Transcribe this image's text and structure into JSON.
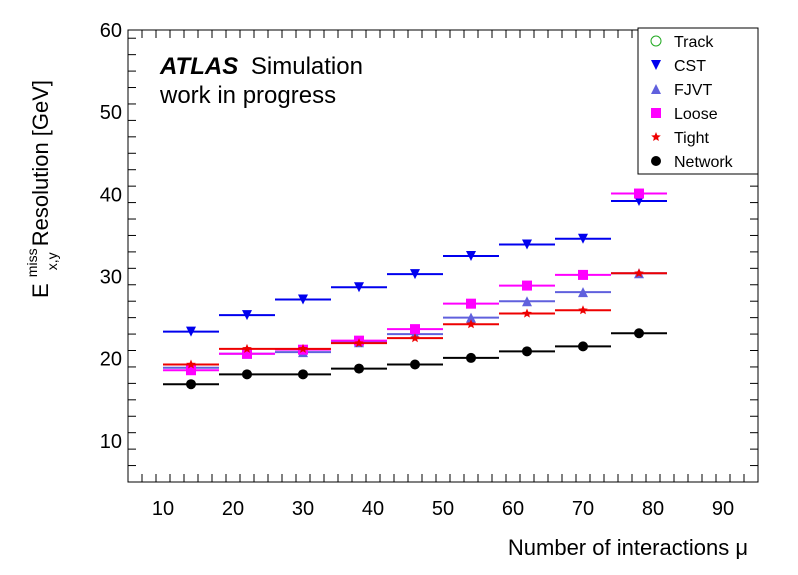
{
  "chart_data": {
    "type": "scatter",
    "xlabel": "Number of interactions μ",
    "ylabel": {
      "base": "E",
      "sup": "miss",
      "sub": "x,y",
      "rest": " Resolution [GeV]"
    },
    "xlim": [
      5,
      95
    ],
    "ylim": [
      5,
      60
    ],
    "xticks": [
      10,
      20,
      30,
      40,
      50,
      60,
      70,
      80,
      90
    ],
    "yticks": [
      10,
      20,
      30,
      40,
      50,
      60
    ],
    "label_atlas": "ATLAS",
    "label_simulation": "Simulation",
    "label_wip": "work in progress",
    "legend_position": "top-right",
    "bins": [
      [
        10,
        18
      ],
      [
        18,
        26
      ],
      [
        26,
        34
      ],
      [
        34,
        42
      ],
      [
        42,
        50
      ],
      [
        50,
        58
      ],
      [
        58,
        66
      ],
      [
        66,
        74
      ],
      [
        74,
        82
      ]
    ],
    "x": [
      14,
      22,
      30,
      38,
      46,
      54,
      62,
      70,
      78
    ],
    "series": [
      {
        "name": "Track",
        "color": "#22aa22",
        "marker": "open-circle",
        "values": []
      },
      {
        "name": "CST",
        "color": "#0000ee",
        "marker": "triangle-down",
        "values": [
          23.3,
          25.3,
          27.2,
          28.7,
          30.3,
          32.5,
          33.9,
          34.6,
          39.2
        ]
      },
      {
        "name": "FJVT",
        "color": "#6060dd",
        "marker": "triangle-up",
        "values": [
          18.9,
          20.6,
          20.8,
          22.0,
          23.0,
          25.0,
          27.0,
          28.1,
          30.4
        ]
      },
      {
        "name": "Loose",
        "color": "#ff00ff",
        "marker": "square",
        "values": [
          18.6,
          20.6,
          21.1,
          22.2,
          23.6,
          26.7,
          28.9,
          30.2,
          40.1
        ]
      },
      {
        "name": "Tight",
        "color": "#ee0000",
        "marker": "star",
        "values": [
          19.3,
          21.2,
          21.2,
          21.9,
          22.5,
          24.2,
          25.5,
          25.9,
          30.4
        ]
      },
      {
        "name": "Network",
        "color": "#000000",
        "marker": "filled-circle",
        "values": [
          16.9,
          18.1,
          18.1,
          18.8,
          19.3,
          20.1,
          20.9,
          21.5,
          23.1
        ]
      }
    ]
  }
}
